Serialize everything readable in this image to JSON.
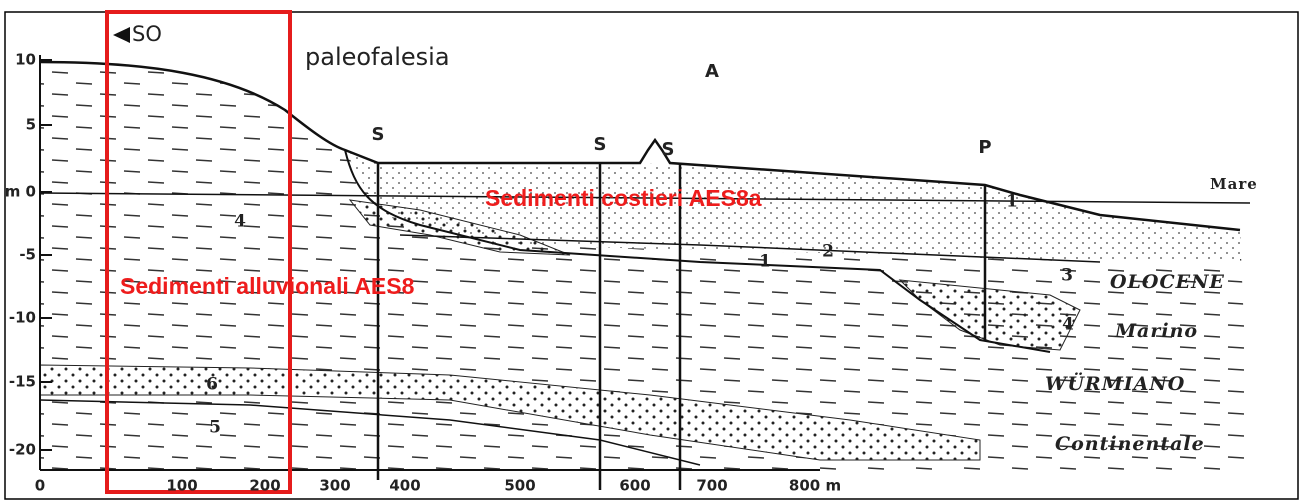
{
  "header": {
    "arrow_label": "SO",
    "annotation": "paleofalesia"
  },
  "axes": {
    "y_labels": [
      "10",
      "5",
      "m 0",
      "-5",
      "-10",
      "-15",
      "-20"
    ],
    "x_labels": [
      "0",
      "100",
      "200",
      "300",
      "400",
      "500",
      "600",
      "700",
      "800 m"
    ]
  },
  "well_labels": [
    "A",
    "S",
    "S",
    "S",
    "P"
  ],
  "layer_numbers": [
    "1",
    "1",
    "2",
    "3",
    "4",
    "4",
    "5",
    "6"
  ],
  "units": [
    "Sedimenti costieri AES8a",
    "Sedimenti alluvionali AES8"
  ],
  "side_labels": [
    "Mare",
    "OLOCENE",
    "Marino",
    "WÜRMIANO",
    "Continentale"
  ]
}
